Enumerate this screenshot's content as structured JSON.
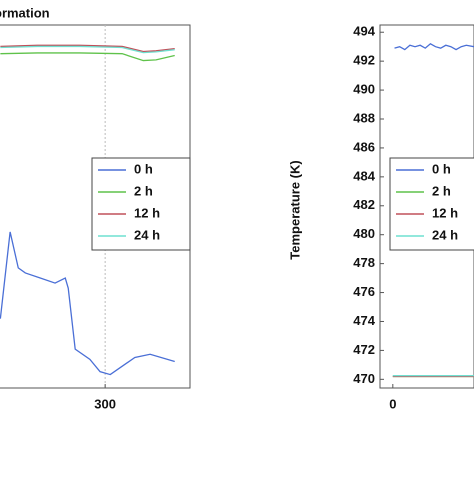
{
  "chart_data": [
    {
      "type": "line",
      "title": "ormation",
      "xlim": [
        -0.7,
        400
      ],
      "xticks": [
        300
      ],
      "ylim": [
        0,
        100
      ],
      "grid": true,
      "legend": "right",
      "series": [
        {
          "name": "0 h",
          "color": "#4a6fd6",
          "x": [
            176.5,
            188,
            197.6,
            205.9,
            223.5,
            241,
            253,
            256.5,
            264.7,
            282,
            294,
            306,
            317.6,
            335,
            353,
            382
          ],
          "values": [
            19.1,
            43,
            33.1,
            31.7,
            30.3,
            28.9,
            30.3,
            27.5,
            10.7,
            7.9,
            4.5,
            3.7,
            5.6,
            8.4,
            9.3,
            7.3
          ]
        },
        {
          "name": "2 h",
          "color": "#5fc24a",
          "x": [
            176.5,
            220,
            270,
            320,
            345,
            360,
            382
          ],
          "values": [
            92.1,
            92.3,
            92.3,
            92.1,
            90.2,
            90.4,
            91.6
          ]
        },
        {
          "name": "12 h",
          "color": "#c0505a",
          "x": [
            176.5,
            220,
            270,
            320,
            345,
            360,
            382
          ],
          "values": [
            94.1,
            94.4,
            94.4,
            94.1,
            92.7,
            92.9,
            93.5
          ]
        },
        {
          "name": "24 h",
          "color": "#6fe0d0",
          "x": [
            176.5,
            220,
            270,
            320,
            345,
            360,
            382
          ],
          "values": [
            93.8,
            94.1,
            94.1,
            93.8,
            92.4,
            92.6,
            93.2
          ]
        }
      ]
    },
    {
      "type": "line",
      "ylabel": "Temperature (K)",
      "xlim": [
        -15,
        95
      ],
      "xticks": [
        0
      ],
      "ylim": [
        469.4,
        494.5
      ],
      "yticks": [
        470,
        472,
        474,
        476,
        478,
        480,
        482,
        484,
        486,
        488,
        490,
        492,
        494
      ],
      "legend": "right",
      "series": [
        {
          "name": "0 h",
          "color": "#4a6fd6",
          "x": [
            2,
            8,
            14,
            20,
            26,
            32,
            38,
            44,
            50,
            56,
            62,
            68,
            74,
            80,
            86,
            95
          ],
          "values": [
            492.9,
            493.0,
            492.8,
            493.1,
            493.0,
            493.1,
            492.9,
            493.2,
            493.0,
            492.9,
            493.1,
            493.0,
            492.8,
            493.0,
            493.1,
            493.0
          ]
        },
        {
          "name": "2 h",
          "color": "#5fc24a",
          "x": [
            0,
            95
          ],
          "values": [
            470.2,
            470.2
          ]
        },
        {
          "name": "12 h",
          "color": "#c0505a",
          "x": [
            0,
            95
          ],
          "values": [
            470.2,
            470.2
          ]
        },
        {
          "name": "24 h",
          "color": "#6fe0d0",
          "x": [
            0,
            95
          ],
          "values": [
            470.25,
            470.25
          ]
        }
      ]
    }
  ]
}
